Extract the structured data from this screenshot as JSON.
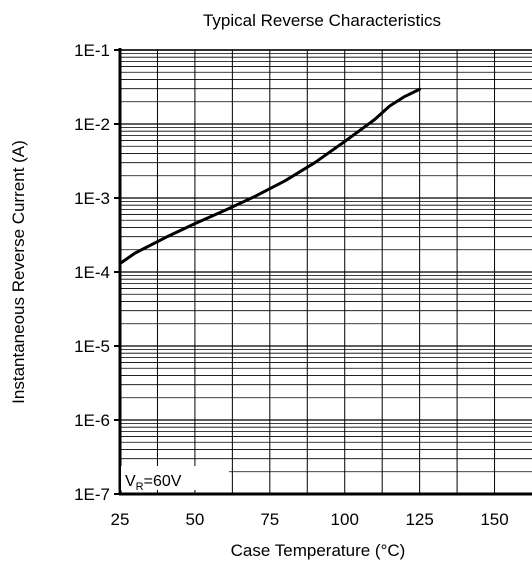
{
  "chart_data": {
    "type": "line",
    "title": "Typical Reverse Characteristics",
    "xlabel": "Case Temperature (°C)",
    "ylabel": "Instantaneous Reverse Current (A)",
    "xlim": [
      25,
      162.5
    ],
    "ylim": [
      1e-07,
      0.1
    ],
    "yscale": "log",
    "x_ticks": [
      25,
      50,
      75,
      100,
      125,
      150
    ],
    "x_tick_labels": [
      "25",
      "50",
      "75",
      "100",
      "125",
      "150"
    ],
    "y_ticks": [
      1e-07,
      1e-06,
      1e-05,
      0.0001,
      0.001,
      0.01,
      0.1
    ],
    "y_tick_labels": [
      "1E-7",
      "1E-6",
      "1E-5",
      "1E-4",
      "1E-3",
      "1E-2",
      "1E-1"
    ],
    "grid": true,
    "annotation": {
      "prefix": "V",
      "subscript": "R",
      "suffix": "=60V"
    },
    "series": [
      {
        "color": "#000000",
        "x": [
          25,
          30,
          40,
          50,
          60,
          70,
          80,
          90,
          100,
          110,
          115,
          120,
          125
        ],
        "y": [
          0.00013,
          0.00018,
          0.00029,
          0.00045,
          0.00068,
          0.00105,
          0.0017,
          0.003,
          0.0058,
          0.0115,
          0.0175,
          0.0235,
          0.0295
        ]
      }
    ]
  }
}
